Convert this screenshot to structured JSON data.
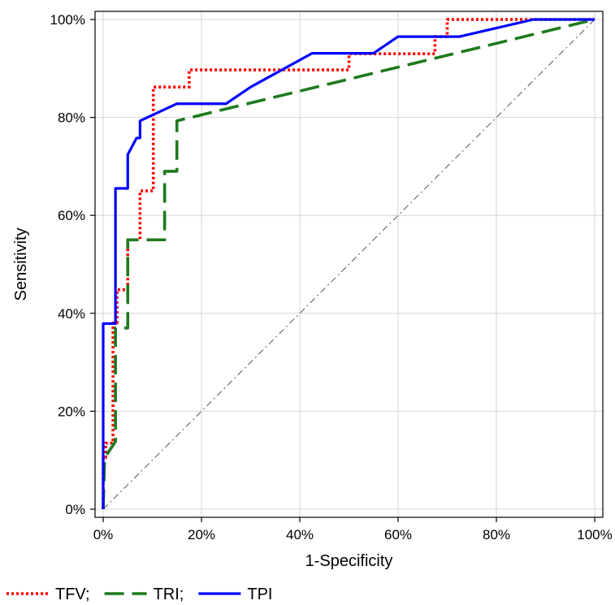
{
  "chart_data": {
    "type": "line",
    "title": "",
    "xlabel": "1-Specificity",
    "ylabel": "Sensitivity",
    "xlim": [
      0,
      100
    ],
    "ylim": [
      0,
      100
    ],
    "x_tick_values": [
      0,
      20,
      40,
      60,
      80,
      100
    ],
    "y_tick_values": [
      0,
      20,
      40,
      60,
      80,
      100
    ],
    "x_tick_labels": [
      "0%",
      "20%",
      "40%",
      "60%",
      "80%",
      "100%"
    ],
    "y_tick_labels": [
      "0%",
      "20%",
      "40%",
      "60%",
      "80%",
      "100%"
    ],
    "grid": true,
    "legend_position": "bottom-left",
    "reference_line": {
      "x": [
        0,
        100
      ],
      "y": [
        0,
        100
      ],
      "color": "#555555",
      "style": "dash-dot"
    },
    "series": [
      {
        "name": "TFV;",
        "color": "#ff0000",
        "style": "dotted",
        "x": [
          0,
          0,
          0.5,
          0.5,
          2.0,
          2.0,
          2.8,
          2.8,
          5.0,
          5.0,
          7.5,
          7.5,
          10.2,
          10.2,
          17.5,
          17.5,
          50.0,
          50.0,
          67.5,
          67.5,
          70.0,
          70.0,
          88.0,
          100
        ],
        "y": [
          0,
          10.5,
          10.5,
          13.5,
          13.5,
          38.0,
          38.0,
          44.8,
          44.8,
          55.0,
          55.0,
          65.0,
          65.0,
          86.2,
          86.2,
          89.7,
          89.7,
          93.0,
          93.0,
          96.5,
          96.5,
          100,
          100,
          100
        ]
      },
      {
        "name": "TRI;",
        "color": "#1e7a1e",
        "style": "dashed",
        "x": [
          0,
          0.3,
          2.5,
          2.5,
          5.0,
          5.0,
          12.5,
          12.5,
          15.0,
          15.0,
          100
        ],
        "y": [
          0,
          10.5,
          13.8,
          37.0,
          37.0,
          55.0,
          55.0,
          69.0,
          69.0,
          79.3,
          100
        ]
      },
      {
        "name": "TPI",
        "color": "#0000ff",
        "style": "solid",
        "x": [
          0,
          0,
          2.5,
          2.5,
          5.0,
          5.0,
          6.8,
          7.5,
          7.5,
          15.0,
          25.0,
          30.0,
          42.5,
          55.0,
          60.0,
          72.5,
          87.5,
          100
        ],
        "y": [
          0,
          37.9,
          37.9,
          65.5,
          65.5,
          72.4,
          75.8,
          75.8,
          79.3,
          82.8,
          82.8,
          86.2,
          93.1,
          93.1,
          96.5,
          96.5,
          100,
          100
        ]
      }
    ]
  }
}
